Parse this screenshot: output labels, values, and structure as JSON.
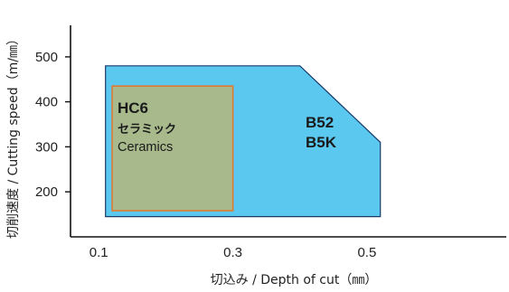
{
  "chart_data": {
    "type": "area",
    "title": "",
    "xlabel": "切込み / Depth of cut（㎜）",
    "ylabel": "切削速度 / Cutting speed（m/㎜）",
    "xlim": [
      0.07,
      0.72
    ],
    "ylim": [
      100,
      570
    ],
    "x_ticks": [
      0.1,
      0.3,
      0.5
    ],
    "x_tick_labels": [
      "0.1",
      "0.3",
      "0.5"
    ],
    "y_ticks": [
      200,
      300,
      400,
      500
    ],
    "y_tick_labels": [
      "200",
      "300",
      "400",
      "500"
    ],
    "grid": false,
    "regions": [
      {
        "name": "B52 / B5K",
        "labels": [
          "B52",
          "B5K"
        ],
        "color": "#5bc8f0",
        "edge_color": "#1a3a6a",
        "points": [
          [
            0.11,
            480
          ],
          [
            0.4,
            480
          ],
          [
            0.52,
            310
          ],
          [
            0.52,
            145
          ],
          [
            0.11,
            145
          ]
        ]
      },
      {
        "name": "HC6 セラミック Ceramics",
        "labels": [
          "HC6",
          "セラミック",
          "Ceramics"
        ],
        "color": "#a8b98c",
        "edge_color": "#e07a30",
        "points": [
          [
            0.12,
            435
          ],
          [
            0.3,
            435
          ],
          [
            0.3,
            158
          ],
          [
            0.12,
            158
          ]
        ]
      }
    ]
  }
}
